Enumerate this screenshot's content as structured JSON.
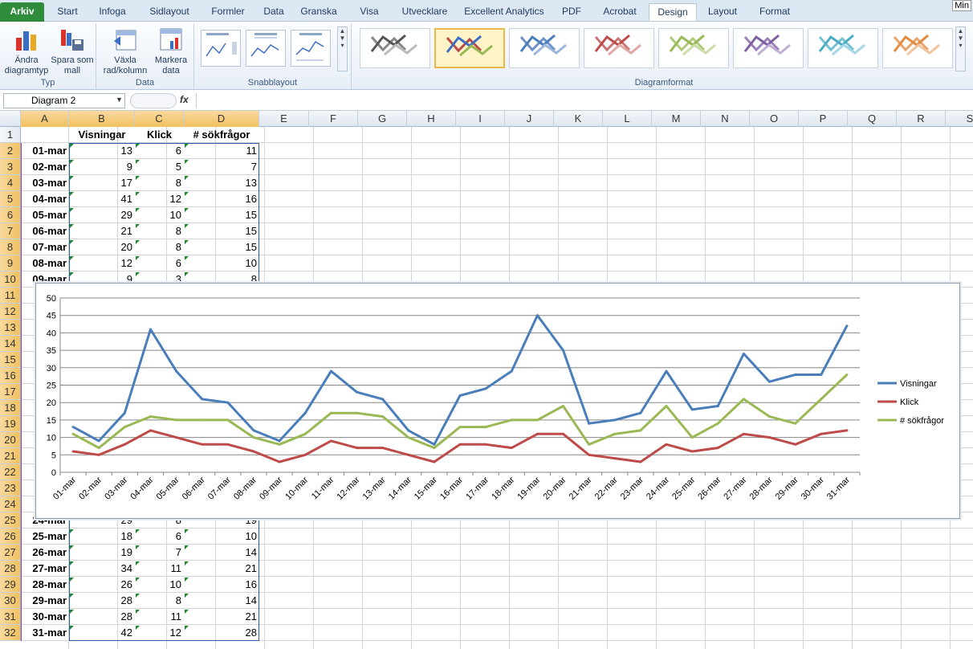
{
  "tabs": [
    "Arkiv",
    "Start",
    "Infoga",
    "Sidlayout",
    "Formler",
    "Data",
    "Granska",
    "Visa",
    "Utvecklare",
    "Excellent Analytics",
    "PDF",
    "Acrobat",
    "Design",
    "Layout",
    "Format"
  ],
  "mini_label": "Min",
  "ribbon": {
    "typ": {
      "label": "Typ",
      "change_type": "Ändra diagramtyp",
      "save_template": "Spara som mall"
    },
    "data": {
      "label": "Data",
      "switch": "Växla rad/kolumn",
      "select": "Markera data"
    },
    "quick_layout": {
      "label": "Snabblayout"
    },
    "chart_styles": {
      "label": "Diagramformat"
    }
  },
  "formula_bar": {
    "name_box": "Diagram 2",
    "fx": "fx",
    "value": ""
  },
  "columns": [
    "A",
    "B",
    "C",
    "D",
    "E",
    "F",
    "G",
    "H",
    "I",
    "J",
    "K",
    "L",
    "M",
    "N",
    "O",
    "P",
    "Q",
    "R",
    "S"
  ],
  "header_row": {
    "a": "",
    "b": "Visningar",
    "c": "Klick",
    "d": "# sökfrågor"
  },
  "visible_rows_top": [
    {
      "row": "2",
      "date": "01-mar",
      "v": "13",
      "k": "6",
      "s": "11"
    },
    {
      "row": "3",
      "date": "02-mar",
      "v": "9",
      "k": "5",
      "s": "7"
    },
    {
      "row": "4",
      "date": "03-mar",
      "v": "17",
      "k": "8",
      "s": "13"
    },
    {
      "row": "5",
      "date": "04-mar",
      "v": "41",
      "k": "12",
      "s": "16"
    },
    {
      "row": "6",
      "date": "05-mar",
      "v": "29",
      "k": "10",
      "s": "15"
    },
    {
      "row": "7",
      "date": "06-mar",
      "v": "21",
      "k": "8",
      "s": "15"
    },
    {
      "row": "8",
      "date": "07-mar",
      "v": "20",
      "k": "8",
      "s": "15"
    },
    {
      "row": "9",
      "date": "08-mar",
      "v": "12",
      "k": "6",
      "s": "10"
    },
    {
      "row": "10",
      "date": "09-mar",
      "v": "9",
      "k": "3",
      "s": "8"
    }
  ],
  "visible_rows_bottom": [
    {
      "row": "25",
      "date": "24-mar",
      "v": "29",
      "k": "8",
      "s": "19"
    },
    {
      "row": "26",
      "date": "25-mar",
      "v": "18",
      "k": "6",
      "s": "10"
    },
    {
      "row": "27",
      "date": "26-mar",
      "v": "19",
      "k": "7",
      "s": "14"
    },
    {
      "row": "28",
      "date": "27-mar",
      "v": "34",
      "k": "11",
      "s": "21"
    },
    {
      "row": "29",
      "date": "28-mar",
      "v": "26",
      "k": "10",
      "s": "16"
    },
    {
      "row": "30",
      "date": "29-mar",
      "v": "28",
      "k": "8",
      "s": "14"
    },
    {
      "row": "31",
      "date": "30-mar",
      "v": "28",
      "k": "11",
      "s": "21"
    },
    {
      "row": "32",
      "date": "31-mar",
      "v": "42",
      "k": "12",
      "s": "28"
    }
  ],
  "hidden_row_numbers": [
    "11",
    "12",
    "13",
    "14",
    "15",
    "16",
    "17",
    "18",
    "19",
    "20",
    "21",
    "22",
    "23",
    "24"
  ],
  "chart_data": {
    "type": "line",
    "categories": [
      "01-mar",
      "02-mar",
      "03-mar",
      "04-mar",
      "05-mar",
      "06-mar",
      "07-mar",
      "08-mar",
      "09-mar",
      "10-mar",
      "11-mar",
      "12-mar",
      "13-mar",
      "14-mar",
      "15-mar",
      "16-mar",
      "17-mar",
      "18-mar",
      "19-mar",
      "20-mar",
      "21-mar",
      "22-mar",
      "23-mar",
      "24-mar",
      "25-mar",
      "26-mar",
      "27-mar",
      "28-mar",
      "29-mar",
      "30-mar",
      "31-mar"
    ],
    "series": [
      {
        "name": "Visningar",
        "color": "#4a7ebb",
        "values": [
          13,
          9,
          17,
          41,
          29,
          21,
          20,
          12,
          9,
          17,
          29,
          23,
          21,
          12,
          8,
          22,
          24,
          29,
          45,
          35,
          14,
          15,
          17,
          29,
          18,
          19,
          34,
          26,
          28,
          28,
          42
        ]
      },
      {
        "name": "Klick",
        "color": "#be4b48",
        "values": [
          6,
          5,
          8,
          12,
          10,
          8,
          8,
          6,
          3,
          5,
          9,
          7,
          7,
          5,
          3,
          8,
          8,
          7,
          11,
          11,
          5,
          4,
          3,
          8,
          6,
          7,
          11,
          10,
          8,
          11,
          12
        ]
      },
      {
        "name": "# sökfrågor",
        "color": "#98b954",
        "values": [
          11,
          7,
          13,
          16,
          15,
          15,
          15,
          10,
          8,
          11,
          17,
          17,
          16,
          10,
          7,
          13,
          13,
          15,
          15,
          19,
          8,
          11,
          12,
          19,
          10,
          14,
          21,
          16,
          14,
          21,
          28
        ]
      }
    ],
    "ylim": [
      0,
      50
    ],
    "yticks": [
      "0",
      "5",
      "10",
      "15",
      "20",
      "25",
      "30",
      "35",
      "40",
      "45",
      "50"
    ],
    "grid": true,
    "legend": "right"
  }
}
